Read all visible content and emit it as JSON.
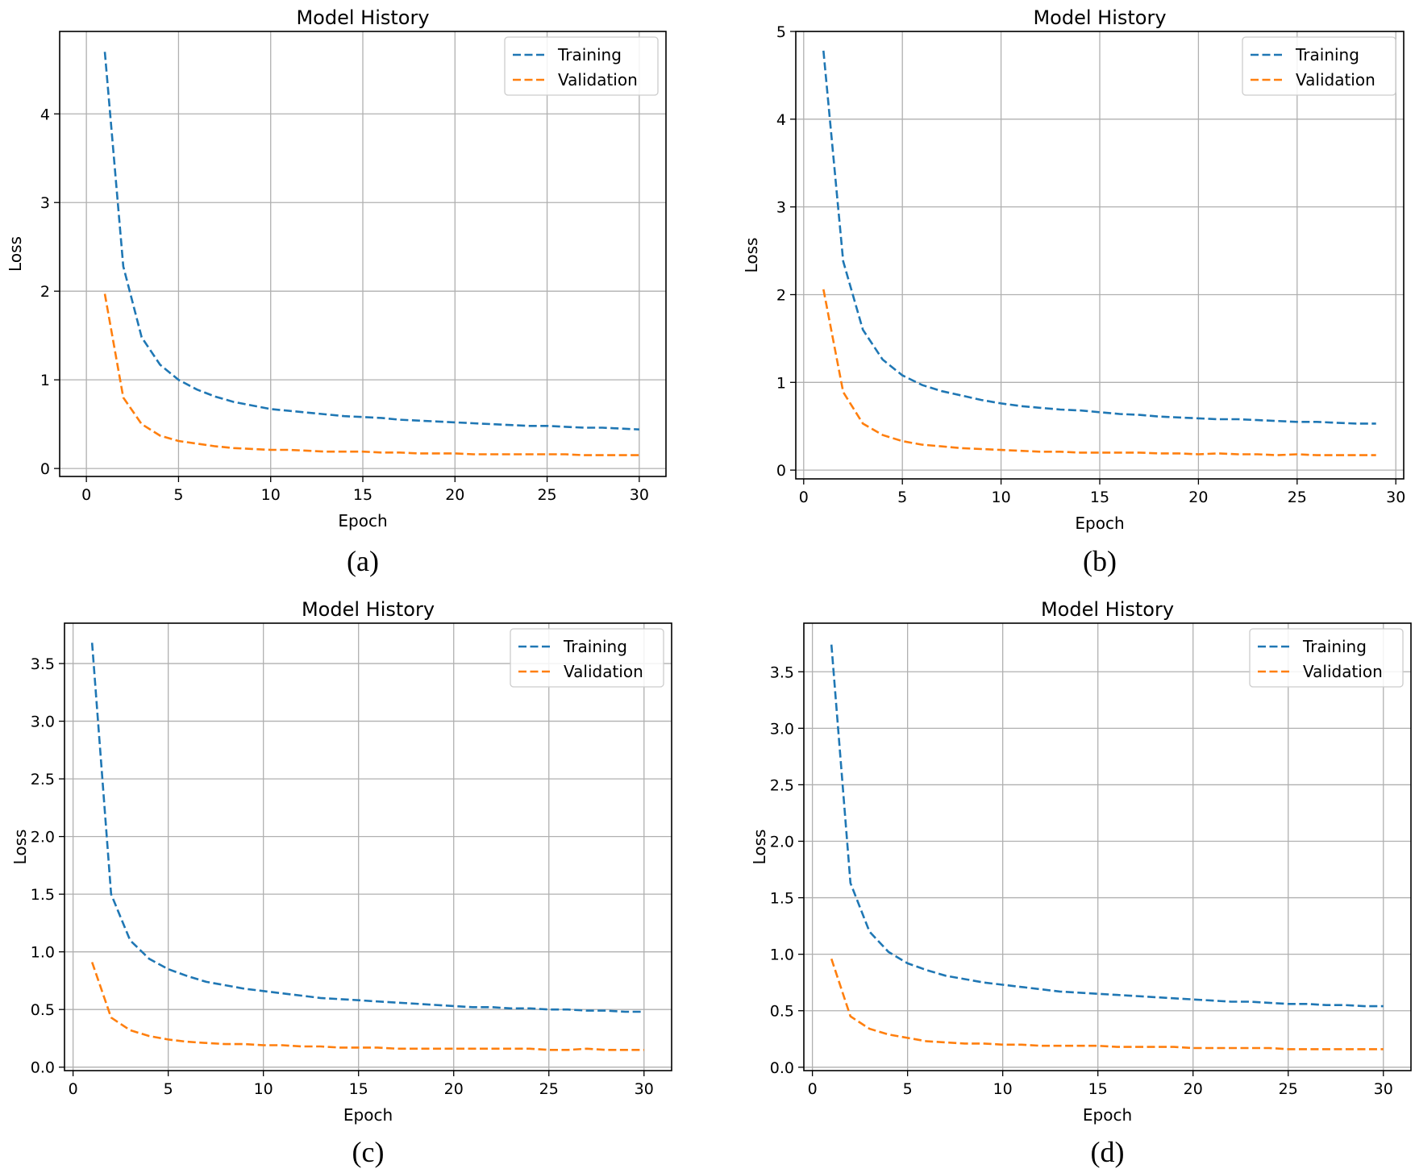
{
  "figure": {
    "panels": [
      "(a)",
      "(b)",
      "(c)",
      "(d)"
    ]
  },
  "style": {
    "training_color": "#1f77b4",
    "validation_color": "#ff7f0e",
    "grid_color": "#b0b0b0",
    "frame_color": "#000000"
  },
  "chart_data": [
    {
      "type": "line",
      "panel": "(a)",
      "title": "Model History",
      "xlabel": "Epoch",
      "ylabel": "Loss",
      "xlim": [
        -1.45,
        31.45
      ],
      "ylim": [
        -0.09,
        4.93
      ],
      "xticks": [
        0,
        5,
        10,
        15,
        20,
        25,
        30
      ],
      "yticks": [
        0,
        1,
        2,
        3,
        4
      ],
      "ytick_labels": [
        "0",
        "1",
        "2",
        "3",
        "4"
      ],
      "grid": true,
      "legend": "top-right",
      "series": [
        {
          "name": "Training",
          "x": [
            1,
            2,
            3,
            4,
            5,
            6,
            7,
            8,
            9,
            10,
            11,
            12,
            13,
            14,
            15,
            16,
            17,
            18,
            19,
            20,
            21,
            22,
            23,
            24,
            25,
            26,
            27,
            28,
            29,
            30
          ],
          "values": [
            4.7,
            2.28,
            1.48,
            1.17,
            1.0,
            0.89,
            0.81,
            0.75,
            0.71,
            0.67,
            0.65,
            0.63,
            0.61,
            0.59,
            0.58,
            0.57,
            0.55,
            0.54,
            0.53,
            0.52,
            0.51,
            0.5,
            0.49,
            0.48,
            0.48,
            0.47,
            0.46,
            0.46,
            0.45,
            0.44
          ]
        },
        {
          "name": "Validation",
          "x": [
            1,
            2,
            3,
            4,
            5,
            6,
            7,
            8,
            9,
            10,
            11,
            12,
            13,
            14,
            15,
            16,
            17,
            18,
            19,
            20,
            21,
            22,
            23,
            24,
            25,
            26,
            27,
            28,
            29,
            30
          ],
          "values": [
            1.97,
            0.8,
            0.5,
            0.37,
            0.31,
            0.28,
            0.25,
            0.23,
            0.22,
            0.21,
            0.21,
            0.2,
            0.19,
            0.19,
            0.19,
            0.18,
            0.18,
            0.17,
            0.17,
            0.17,
            0.16,
            0.16,
            0.16,
            0.16,
            0.16,
            0.16,
            0.15,
            0.15,
            0.15,
            0.15
          ]
        }
      ]
    },
    {
      "type": "line",
      "panel": "(b)",
      "title": "Model History",
      "xlabel": "Epoch",
      "ylabel": "Loss",
      "xlim": [
        -0.4,
        30.4
      ],
      "ylim": [
        -0.1,
        5.0
      ],
      "xticks": [
        0,
        5,
        10,
        15,
        20,
        25,
        30
      ],
      "yticks": [
        0,
        1,
        2,
        3,
        4,
        5
      ],
      "ytick_labels": [
        "0",
        "1",
        "2",
        "3",
        "4",
        "5"
      ],
      "grid": true,
      "legend": "top-right",
      "series": [
        {
          "name": "Training",
          "x": [
            1,
            2,
            3,
            4,
            5,
            6,
            7,
            8,
            9,
            10,
            11,
            12,
            13,
            14,
            15,
            16,
            17,
            18,
            19,
            20,
            21,
            22,
            23,
            24,
            25,
            26,
            27,
            28,
            29
          ],
          "values": [
            4.78,
            2.38,
            1.6,
            1.26,
            1.08,
            0.97,
            0.9,
            0.85,
            0.8,
            0.76,
            0.73,
            0.71,
            0.69,
            0.68,
            0.66,
            0.64,
            0.63,
            0.61,
            0.6,
            0.59,
            0.58,
            0.58,
            0.57,
            0.56,
            0.55,
            0.55,
            0.54,
            0.53,
            0.53
          ]
        },
        {
          "name": "Validation",
          "x": [
            1,
            2,
            3,
            4,
            5,
            6,
            7,
            8,
            9,
            10,
            11,
            12,
            13,
            14,
            15,
            16,
            17,
            18,
            19,
            20,
            21,
            22,
            23,
            24,
            25,
            26,
            27,
            28,
            29
          ],
          "values": [
            2.06,
            0.89,
            0.53,
            0.4,
            0.33,
            0.29,
            0.27,
            0.25,
            0.24,
            0.23,
            0.22,
            0.21,
            0.21,
            0.2,
            0.2,
            0.2,
            0.2,
            0.19,
            0.19,
            0.18,
            0.19,
            0.18,
            0.18,
            0.17,
            0.18,
            0.17,
            0.17,
            0.17,
            0.17
          ]
        }
      ]
    },
    {
      "type": "line",
      "panel": "(c)",
      "title": "Model History",
      "xlabel": "Epoch",
      "ylabel": "Loss",
      "xlim": [
        -0.45,
        31.45
      ],
      "ylim": [
        -0.03,
        3.85
      ],
      "xticks": [
        0,
        5,
        10,
        15,
        20,
        25,
        30
      ],
      "yticks": [
        0,
        0.5,
        1,
        1.5,
        2,
        2.5,
        3,
        3.5
      ],
      "ytick_labels": [
        "0.0",
        "0.5",
        "1.0",
        "1.5",
        "2.0",
        "2.5",
        "3.0",
        "3.5"
      ],
      "grid": true,
      "legend": "top-right",
      "series": [
        {
          "name": "Training",
          "x": [
            1,
            2,
            3,
            4,
            5,
            6,
            7,
            8,
            9,
            10,
            11,
            12,
            13,
            14,
            15,
            16,
            17,
            18,
            19,
            20,
            21,
            22,
            23,
            24,
            25,
            26,
            27,
            28,
            29,
            30
          ],
          "values": [
            3.68,
            1.5,
            1.1,
            0.94,
            0.85,
            0.79,
            0.74,
            0.71,
            0.68,
            0.66,
            0.64,
            0.62,
            0.6,
            0.59,
            0.58,
            0.57,
            0.56,
            0.55,
            0.54,
            0.53,
            0.52,
            0.52,
            0.51,
            0.51,
            0.5,
            0.5,
            0.49,
            0.49,
            0.48,
            0.48
          ]
        },
        {
          "name": "Validation",
          "x": [
            1,
            2,
            3,
            4,
            5,
            6,
            7,
            8,
            9,
            10,
            11,
            12,
            13,
            14,
            15,
            16,
            17,
            18,
            19,
            20,
            21,
            22,
            23,
            24,
            25,
            26,
            27,
            28,
            29,
            30
          ],
          "values": [
            0.91,
            0.43,
            0.32,
            0.27,
            0.24,
            0.22,
            0.21,
            0.2,
            0.2,
            0.19,
            0.19,
            0.18,
            0.18,
            0.17,
            0.17,
            0.17,
            0.16,
            0.16,
            0.16,
            0.16,
            0.16,
            0.16,
            0.16,
            0.16,
            0.15,
            0.15,
            0.16,
            0.15,
            0.15,
            0.15
          ]
        }
      ]
    },
    {
      "type": "line",
      "panel": "(d)",
      "title": "Model History",
      "xlabel": "Epoch",
      "ylabel": "Loss",
      "xlim": [
        -0.45,
        31.45
      ],
      "ylim": [
        -0.03,
        3.93
      ],
      "xticks": [
        0,
        5,
        10,
        15,
        20,
        25,
        30
      ],
      "yticks": [
        0,
        0.5,
        1,
        1.5,
        2,
        2.5,
        3,
        3.5
      ],
      "ytick_labels": [
        "0.0",
        "0.5",
        "1.0",
        "1.5",
        "2.0",
        "2.5",
        "3.0",
        "3.5"
      ],
      "grid": true,
      "legend": "top-right",
      "series": [
        {
          "name": "Training",
          "x": [
            1,
            2,
            3,
            4,
            5,
            6,
            7,
            8,
            9,
            10,
            11,
            12,
            13,
            14,
            15,
            16,
            17,
            18,
            19,
            20,
            21,
            22,
            23,
            24,
            25,
            26,
            27,
            28,
            29,
            30
          ],
          "values": [
            3.74,
            1.63,
            1.2,
            1.02,
            0.92,
            0.86,
            0.81,
            0.78,
            0.75,
            0.73,
            0.71,
            0.69,
            0.67,
            0.66,
            0.65,
            0.64,
            0.63,
            0.62,
            0.61,
            0.6,
            0.59,
            0.58,
            0.58,
            0.57,
            0.56,
            0.56,
            0.55,
            0.55,
            0.54,
            0.54
          ]
        },
        {
          "name": "Validation",
          "x": [
            1,
            2,
            3,
            4,
            5,
            6,
            7,
            8,
            9,
            10,
            11,
            12,
            13,
            14,
            15,
            16,
            17,
            18,
            19,
            20,
            21,
            22,
            23,
            24,
            25,
            26,
            27,
            28,
            29,
            30
          ],
          "values": [
            0.96,
            0.45,
            0.34,
            0.29,
            0.26,
            0.23,
            0.22,
            0.21,
            0.21,
            0.2,
            0.2,
            0.19,
            0.19,
            0.19,
            0.19,
            0.18,
            0.18,
            0.18,
            0.18,
            0.17,
            0.17,
            0.17,
            0.17,
            0.17,
            0.16,
            0.16,
            0.16,
            0.16,
            0.16,
            0.16
          ]
        }
      ]
    }
  ]
}
